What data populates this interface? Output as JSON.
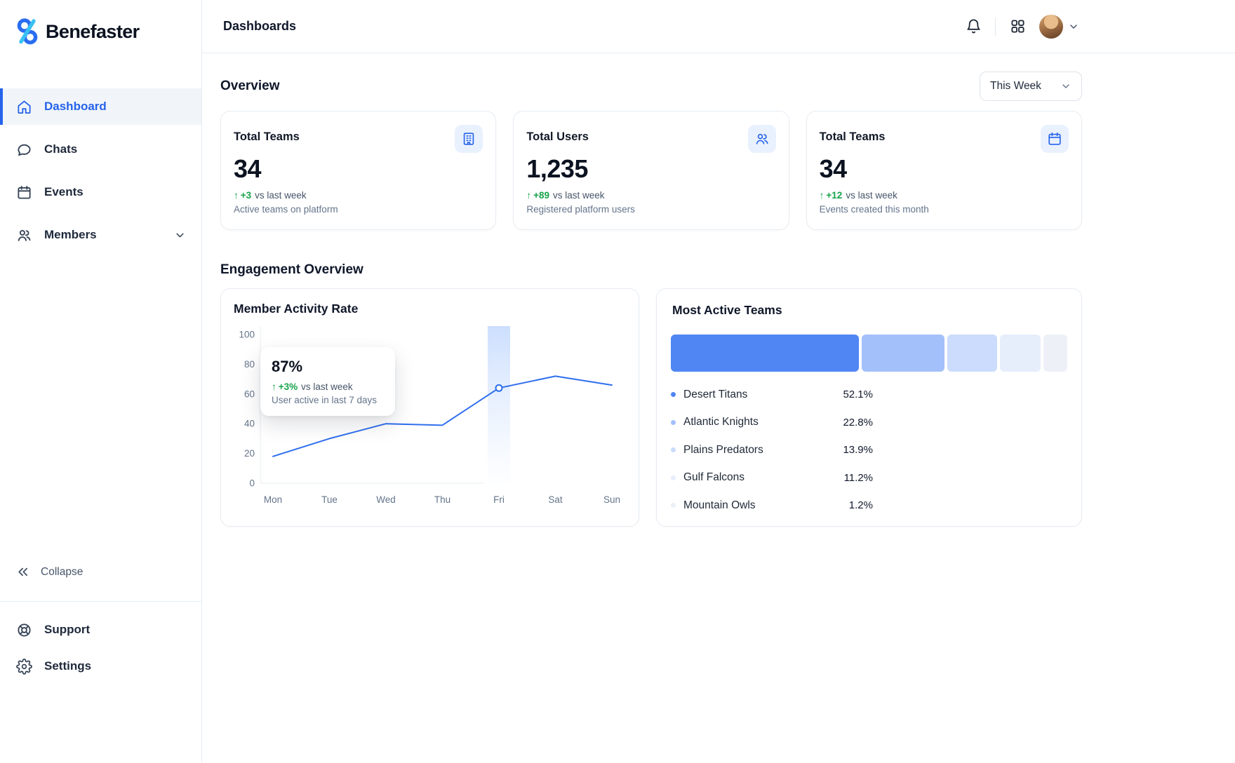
{
  "app": {
    "name": "Benefaster"
  },
  "header": {
    "title": "Dashboards"
  },
  "icons": {
    "trend_up": "↑"
  },
  "sidebar": {
    "items": [
      {
        "label": "Dashboard"
      },
      {
        "label": "Chats"
      },
      {
        "label": "Events"
      },
      {
        "label": "Members"
      }
    ],
    "collapse_label": "Collapse",
    "footer_items": [
      {
        "label": "Support"
      },
      {
        "label": "Settings"
      }
    ]
  },
  "overview": {
    "heading": "Overview",
    "range_selector": {
      "value": "This Week"
    },
    "cards": [
      {
        "title": "Total Teams",
        "value": "34",
        "delta": "+3",
        "delta_suffix": "vs last week",
        "caption": "Active teams on platform",
        "icon": "building-icon"
      },
      {
        "title": "Total Users",
        "value": "1,235",
        "delta": "+89",
        "delta_suffix": "vs last week",
        "caption": "Registered platform users",
        "icon": "users-icon"
      },
      {
        "title": "Total Teams",
        "value": "34",
        "delta": "+12",
        "delta_suffix": "vs last week",
        "caption": "Events created this month",
        "icon": "calendar-icon"
      }
    ]
  },
  "engagement": {
    "heading": "Engagement Overview"
  },
  "chart_data": [
    {
      "type": "line",
      "title": "Member Activity Rate",
      "x": [
        "Mon",
        "Tue",
        "Wed",
        "Thu",
        "Fri",
        "Sat",
        "Sun"
      ],
      "values": [
        18,
        30,
        40,
        39,
        64,
        72,
        66
      ],
      "ylim": [
        0,
        100
      ],
      "yticks": [
        0,
        20,
        40,
        60,
        80,
        100
      ],
      "line_color": "#2f6fed",
      "highlight_x": "Fri",
      "grid": false,
      "tooltip": {
        "value": "87%",
        "delta": "+3%",
        "delta_suffix": "vs last week",
        "caption": "User active in last 7 days"
      }
    },
    {
      "type": "bar",
      "title": "Most Active Teams",
      "categories": [
        "Desert Titans",
        "Atlantic Knights",
        "Plains Predators",
        "Gulf Falcons",
        "Mountain Owls"
      ],
      "values": [
        52.1,
        22.8,
        13.9,
        11.2,
        1.2
      ],
      "labels": [
        "52.1%",
        "22.8%",
        "13.9%",
        "11.2%",
        "1.2%"
      ],
      "colors": [
        "#4f86f3",
        "#a3c0fa",
        "#cbdcfc",
        "#e6eefc",
        "#edf1f7"
      ]
    }
  ]
}
